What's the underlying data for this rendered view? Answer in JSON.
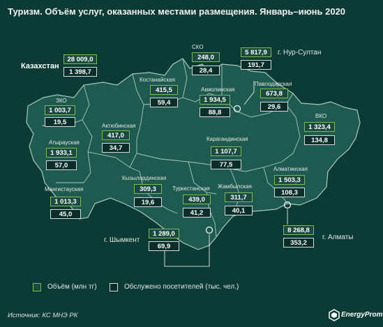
{
  "title": "Туризм. Объём услуг, оказанных местами размещения. Январь–июнь 2020",
  "source": "Источник: КС МНЭ РК",
  "brand": "EnergyProm",
  "legend": {
    "volume_label": "Объём (млн тг)",
    "visitors_label": "Обслужено посетителей (тыс. чел.)"
  },
  "colors": {
    "background": "#0b3b34",
    "map_fill": "#1e5a50",
    "map_border": "#a9c9c2",
    "volume_border": "#7bbf4a",
    "visitors_border": "#d9d9d9"
  },
  "kazakhstan": {
    "name": "Казахстан",
    "volume": "28 009,0",
    "visitors": "1 398,7"
  },
  "regions": {
    "sko": {
      "name": "СКО",
      "volume": "248,0",
      "visitors": "28,4"
    },
    "nursultan": {
      "name": "г. Нур-Султан",
      "volume": "5 817,9",
      "visitors": "191,7"
    },
    "kostanay": {
      "name": "Костанайская",
      "volume": "415,5",
      "visitors": "59,4"
    },
    "akmola": {
      "name": "Акмолинская",
      "volume": "1 934,5",
      "visitors": "88,8"
    },
    "pavlodar": {
      "name": "Павлодарская",
      "volume": "673,8",
      "visitors": "29,6"
    },
    "zko": {
      "name": "ЗКО",
      "volume": "1 003,7",
      "visitors": "19,5"
    },
    "aktobe": {
      "name": "Актюбинская",
      "volume": "417,0",
      "visitors": "34,7"
    },
    "vko": {
      "name": "ВКО",
      "volume": "1 323,4",
      "visitors": "134,8"
    },
    "atyrau": {
      "name": "Атырауская",
      "volume": "1 933,1",
      "visitors": "57,0"
    },
    "karaganda": {
      "name": "Карагандинская",
      "volume": "1 107,7",
      "visitors": "77,5"
    },
    "almaty_obl": {
      "name": "Алматинская",
      "volume": "1 503,3",
      "visitors": "108,3"
    },
    "mangystau": {
      "name": "Мангистауская",
      "volume": "1 013,3",
      "visitors": "45,0"
    },
    "kyzylorda": {
      "name": "Кызылординская",
      "volume": "309,3",
      "visitors": "19,6"
    },
    "turkestan": {
      "name": "Туркестанская",
      "volume": "439,0",
      "visitors": "41,2"
    },
    "zhambyl": {
      "name": "Жамбылская",
      "volume": "311,7",
      "visitors": "40,1"
    },
    "almaty_city": {
      "name": "г. Алматы",
      "volume": "8 268,8",
      "visitors": "353,2"
    },
    "shymkent": {
      "name": "г. Шымкент",
      "volume": "1 289,0",
      "visitors": "69,9"
    }
  }
}
